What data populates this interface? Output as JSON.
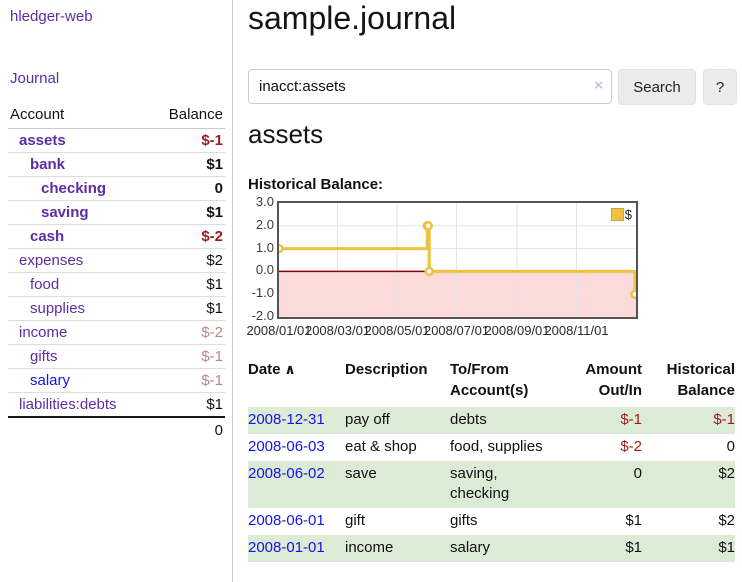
{
  "app": {
    "brand": "hledger-web"
  },
  "sidebar": {
    "journal_link": "Journal",
    "headers": {
      "account": "Account",
      "balance": "Balance"
    },
    "accounts": [
      {
        "name": "assets",
        "balance": "$-1",
        "indent": 1,
        "bold": true,
        "bal": "neg-strong"
      },
      {
        "name": "bank",
        "balance": "$1",
        "indent": 2,
        "bold": true,
        "bal": "pos"
      },
      {
        "name": "checking",
        "balance": "0",
        "indent": 3,
        "bold": true,
        "bal": "pos"
      },
      {
        "name": "saving",
        "balance": "$1",
        "indent": 3,
        "bold": true,
        "bal": "pos"
      },
      {
        "name": "cash",
        "balance": "$-2",
        "indent": 2,
        "bold": true,
        "bal": "neg-strong"
      },
      {
        "name": "expenses",
        "balance": "$2",
        "indent": 1,
        "bold": false,
        "bal": "pos"
      },
      {
        "name": "food",
        "balance": "$1",
        "indent": 2,
        "bold": false,
        "bal": "pos"
      },
      {
        "name": "supplies",
        "balance": "$1",
        "indent": 2,
        "bold": false,
        "bal": "pos"
      },
      {
        "name": "income",
        "balance": "$-2",
        "indent": 1,
        "bold": false,
        "bal": "neg-muted"
      },
      {
        "name": "gifts",
        "balance": "$-1",
        "indent": 2,
        "bold": false,
        "bal": "neg-muted"
      },
      {
        "name": "salary",
        "balance": "$-1",
        "indent": 2,
        "bold": false,
        "bal": "neg-muted",
        "blue": true
      },
      {
        "name": "liabilities:debts",
        "balance": "$1",
        "indent": 1,
        "bold": false,
        "bal": "pos",
        "last": true
      }
    ],
    "total": "0"
  },
  "header": {
    "title": "sample.journal"
  },
  "search": {
    "value": "inacct:assets",
    "clear_icon": "×",
    "search_button": "Search",
    "help_button": "?"
  },
  "account_view": {
    "heading": "assets",
    "chart_label": "Historical Balance:"
  },
  "chart_data": {
    "type": "line",
    "step": true,
    "series": [
      {
        "name": "$",
        "color": "#edc240",
        "points": [
          [
            "2008-01-01",
            1
          ],
          [
            "2008-06-01",
            2
          ],
          [
            "2008-06-02",
            2
          ],
          [
            "2008-06-03",
            0
          ],
          [
            "2008-12-31",
            -1
          ]
        ]
      }
    ],
    "x_range": [
      "2008-01-01",
      "2009-01-01"
    ],
    "ylim": [
      -2.0,
      3.0
    ],
    "yticks": [
      "3.0",
      "2.0",
      "1.0",
      "0.0",
      "-1.0",
      "-2.0"
    ],
    "xticks": [
      "2008/01/01",
      "2008/03/01",
      "2008/05/01",
      "2008/07/01",
      "2008/09/01",
      "2008/11/01"
    ],
    "legend": {
      "label": "$",
      "position": "top-right"
    },
    "grid": true,
    "negative_region_fill": "#fcdada",
    "zero_line_color": "#8b0000"
  },
  "register": {
    "columns": [
      {
        "label": "Date",
        "sort": "∧",
        "align": "left"
      },
      {
        "label": "Description",
        "align": "left"
      },
      {
        "label": "To/From Account(s)",
        "align": "left"
      },
      {
        "label": "Amount Out/In",
        "align": "right"
      },
      {
        "label": "Historical Balance",
        "align": "right"
      }
    ],
    "rows": [
      {
        "date": "2008-12-31",
        "description": "pay off",
        "accounts": "debts",
        "amount": "$-1",
        "amount_neg": true,
        "balance": "$-1",
        "balance_neg": true
      },
      {
        "date": "2008-06-03",
        "description": "eat & shop",
        "accounts": "food, supplies",
        "amount": "$-2",
        "amount_neg": true,
        "balance": "0",
        "balance_neg": false
      },
      {
        "date": "2008-06-02",
        "description": "save",
        "accounts": "saving, checking",
        "amount": "0",
        "amount_neg": false,
        "balance": "$2",
        "balance_neg": false
      },
      {
        "date": "2008-06-01",
        "description": "gift",
        "accounts": "gifts",
        "amount": "$1",
        "amount_neg": false,
        "balance": "$2",
        "balance_neg": false
      },
      {
        "date": "2008-01-01",
        "description": "income",
        "accounts": "salary",
        "amount": "$1",
        "amount_neg": false,
        "balance": "$1",
        "balance_neg": false
      }
    ]
  },
  "colors": {
    "link_purple": "#5e2ca5",
    "link_blue": "#1414e8",
    "negative_strong": "#9c1b1b",
    "negative_muted": "#c28383",
    "row_green": "#dcebd5",
    "series_gold": "#edc240",
    "negative_fill": "#fcdada",
    "zero_line": "#8b0000"
  }
}
